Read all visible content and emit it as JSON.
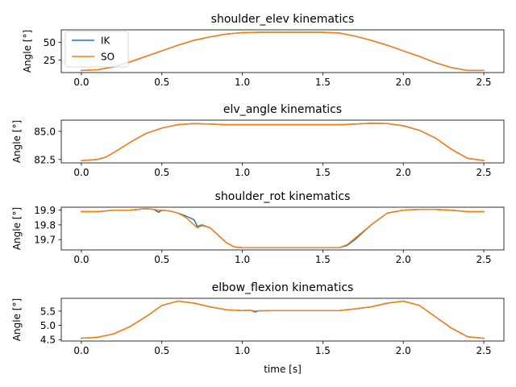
{
  "colors": {
    "ik": "#1f77b4",
    "so": "#ff7f0e"
  },
  "chart_data": [
    {
      "type": "line",
      "title": "shoulder_elev kinematics",
      "xlabel": "",
      "ylabel": "Angle [°]",
      "xlim": [
        -0.125,
        2.625
      ],
      "ylim": [
        7.0,
        68.0
      ],
      "xticks": [
        0.0,
        0.5,
        1.0,
        1.5,
        2.0,
        2.5
      ],
      "xtick_labels": [
        "0.0",
        "0.5",
        "1.0",
        "1.5",
        "2.0",
        "2.5"
      ],
      "yticks": [
        25,
        50
      ],
      "ytick_labels": [
        "25",
        "50"
      ],
      "legend": {
        "position": "top-left",
        "entries": [
          "IK",
          "SO"
        ]
      },
      "x": [
        0.0,
        0.1,
        0.2,
        0.3,
        0.4,
        0.5,
        0.6,
        0.7,
        0.8,
        0.9,
        1.0,
        1.1,
        1.2,
        1.3,
        1.4,
        1.5,
        1.6,
        1.7,
        1.8,
        1.9,
        2.0,
        2.1,
        2.2,
        2.3,
        2.4,
        2.5
      ],
      "series": [
        {
          "name": "IK",
          "values": [
            10,
            11,
            15,
            22,
            30,
            38,
            46,
            53,
            58,
            62,
            64,
            64.5,
            64.5,
            64.5,
            64.5,
            64.5,
            63.5,
            59,
            53,
            46,
            38,
            30,
            21,
            14,
            10,
            10
          ]
        },
        {
          "name": "SO",
          "values": [
            10,
            11,
            15,
            22,
            30,
            38,
            46,
            53,
            58,
            62,
            64,
            64.5,
            64.5,
            64.5,
            64.5,
            64.5,
            63.5,
            59,
            53,
            46,
            38,
            30,
            21,
            14,
            10,
            10
          ]
        }
      ]
    },
    {
      "type": "line",
      "title": "elv_angle kinematics",
      "xlabel": "",
      "ylabel": "Angle [°]",
      "xlim": [
        -0.125,
        2.625
      ],
      "ylim": [
        82.2,
        86.0
      ],
      "xticks": [
        0.0,
        0.5,
        1.0,
        1.5,
        2.0,
        2.5
      ],
      "xtick_labels": [
        "0.0",
        "0.5",
        "1.0",
        "1.5",
        "2.0",
        "2.5"
      ],
      "yticks": [
        82.5,
        85.0
      ],
      "ytick_labels": [
        "82.5",
        "85.0"
      ],
      "x": [
        0.0,
        0.1,
        0.15,
        0.2,
        0.3,
        0.4,
        0.5,
        0.6,
        0.7,
        0.8,
        0.9,
        1.0,
        1.2,
        1.4,
        1.6,
        1.7,
        1.8,
        1.9,
        2.0,
        2.1,
        2.2,
        2.3,
        2.4,
        2.5
      ],
      "series": [
        {
          "name": "IK",
          "values": [
            82.4,
            82.5,
            82.7,
            83.1,
            84.0,
            84.8,
            85.3,
            85.6,
            85.7,
            85.65,
            85.6,
            85.6,
            85.6,
            85.6,
            85.6,
            85.65,
            85.72,
            85.7,
            85.5,
            85.1,
            84.4,
            83.4,
            82.6,
            82.4
          ]
        },
        {
          "name": "SO",
          "values": [
            82.4,
            82.5,
            82.7,
            83.1,
            84.0,
            84.8,
            85.3,
            85.6,
            85.7,
            85.65,
            85.6,
            85.6,
            85.6,
            85.6,
            85.6,
            85.65,
            85.72,
            85.7,
            85.5,
            85.1,
            84.4,
            83.4,
            82.6,
            82.4
          ]
        }
      ]
    },
    {
      "type": "line",
      "title": "shoulder_rot kinematics",
      "xlabel": "",
      "ylabel": "Angle [°]",
      "xlim": [
        -0.125,
        2.625
      ],
      "ylim": [
        19.63,
        19.92
      ],
      "xticks": [
        0.0,
        0.5,
        1.0,
        1.5,
        2.0,
        2.5
      ],
      "xtick_labels": [
        "0.0",
        "0.5",
        "1.0",
        "1.5",
        "2.0",
        "2.5"
      ],
      "yticks": [
        19.7,
        19.8,
        19.9
      ],
      "ytick_labels": [
        "19.7",
        "19.8",
        "19.9"
      ],
      "x": [
        0.0,
        0.1,
        0.2,
        0.3,
        0.35,
        0.4,
        0.45,
        0.48,
        0.5,
        0.55,
        0.6,
        0.65,
        0.7,
        0.72,
        0.75,
        0.8,
        0.85,
        0.9,
        0.95,
        1.0,
        1.2,
        1.4,
        1.6,
        1.65,
        1.7,
        1.8,
        1.9,
        2.0,
        2.1,
        2.2,
        2.3,
        2.4,
        2.5
      ],
      "series": [
        {
          "name": "IK",
          "values": [
            19.89,
            19.89,
            19.9,
            19.9,
            19.905,
            19.91,
            19.905,
            19.885,
            19.9,
            19.895,
            19.88,
            19.86,
            19.835,
            19.79,
            19.8,
            19.78,
            19.73,
            19.68,
            19.65,
            19.645,
            19.645,
            19.645,
            19.645,
            19.66,
            19.7,
            19.8,
            19.88,
            19.9,
            19.905,
            19.905,
            19.9,
            19.89,
            19.89
          ]
        },
        {
          "name": "SO",
          "values": [
            19.89,
            19.89,
            19.9,
            19.9,
            19.905,
            19.91,
            19.905,
            19.9,
            19.9,
            19.895,
            19.88,
            19.85,
            19.8,
            19.78,
            19.795,
            19.78,
            19.73,
            19.68,
            19.65,
            19.645,
            19.645,
            19.645,
            19.645,
            19.665,
            19.71,
            19.8,
            19.88,
            19.9,
            19.905,
            19.905,
            19.9,
            19.89,
            19.89
          ]
        }
      ]
    },
    {
      "type": "line",
      "title": "elbow_flexion kinematics",
      "xlabel": "time [s]",
      "ylabel": "Angle [°]",
      "xlim": [
        -0.125,
        2.625
      ],
      "ylim": [
        4.45,
        5.95
      ],
      "xticks": [
        0.0,
        0.5,
        1.0,
        1.5,
        2.0,
        2.5
      ],
      "xtick_labels": [
        "0.0",
        "0.5",
        "1.0",
        "1.5",
        "2.0",
        "2.5"
      ],
      "yticks": [
        4.5,
        5.0,
        5.5
      ],
      "ytick_labels": [
        "4.5",
        "5.0",
        "5.5"
      ],
      "x": [
        0.0,
        0.1,
        0.2,
        0.3,
        0.4,
        0.5,
        0.6,
        0.7,
        0.8,
        0.9,
        1.0,
        1.05,
        1.08,
        1.1,
        1.2,
        1.4,
        1.6,
        1.7,
        1.8,
        1.9,
        2.0,
        2.1,
        2.2,
        2.3,
        2.4,
        2.5
      ],
      "series": [
        {
          "name": "IK",
          "values": [
            4.55,
            4.58,
            4.7,
            4.95,
            5.3,
            5.7,
            5.85,
            5.78,
            5.65,
            5.55,
            5.52,
            5.53,
            5.47,
            5.51,
            5.52,
            5.52,
            5.52,
            5.58,
            5.65,
            5.78,
            5.85,
            5.7,
            5.3,
            4.9,
            4.6,
            4.55
          ]
        },
        {
          "name": "SO",
          "values": [
            4.55,
            4.58,
            4.7,
            4.95,
            5.3,
            5.7,
            5.85,
            5.78,
            5.65,
            5.55,
            5.52,
            5.53,
            5.5,
            5.51,
            5.52,
            5.52,
            5.52,
            5.58,
            5.65,
            5.78,
            5.85,
            5.7,
            5.3,
            4.9,
            4.6,
            4.55
          ]
        }
      ]
    }
  ]
}
